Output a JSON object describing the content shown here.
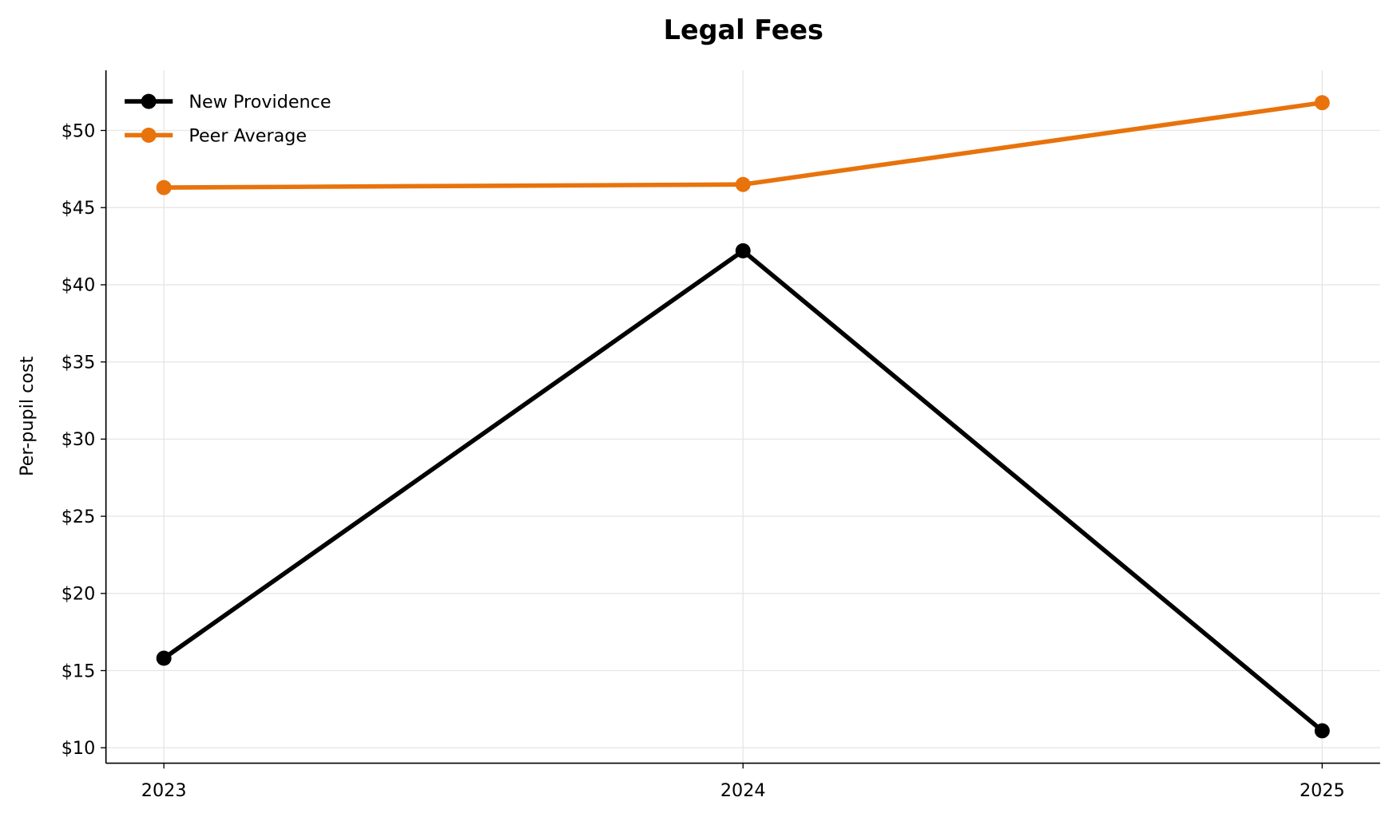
{
  "chart_data": {
    "type": "line",
    "title": "Legal Fees",
    "xlabel": "",
    "ylabel": "Per-pupil cost",
    "x": [
      2023,
      2024,
      2025
    ],
    "x_tick_labels": [
      "2023",
      "2024",
      "2025"
    ],
    "xlim": [
      2022.9,
      2025.1
    ],
    "ylim": [
      9.0,
      53.9
    ],
    "y_ticks": [
      10,
      15,
      20,
      25,
      30,
      35,
      40,
      45,
      50
    ],
    "y_tick_labels": [
      "$10",
      "$15",
      "$20",
      "$25",
      "$30",
      "$35",
      "$40",
      "$45",
      "$50"
    ],
    "grid": true,
    "legend_placement": "top-left",
    "series": [
      {
        "name": "New Providence",
        "values": [
          15.8,
          42.2,
          11.1
        ],
        "color": "#000000",
        "marker": "circle"
      },
      {
        "name": "Peer Average",
        "values": [
          46.3,
          46.5,
          51.8
        ],
        "color": "#E8730C",
        "marker": "circle"
      }
    ]
  }
}
